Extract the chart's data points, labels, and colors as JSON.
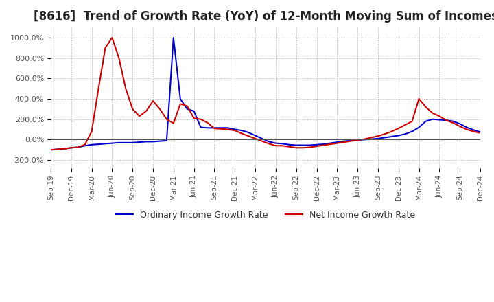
{
  "title": "[8616]  Trend of Growth Rate (YoY) of 12-Month Moving Sum of Incomes",
  "title_fontsize": 12,
  "ylim": [
    -280,
    1100
  ],
  "yticks": [
    -200,
    0,
    200,
    400,
    600,
    800,
    1000
  ],
  "background_color": "#ffffff",
  "grid_color": "#aaaaaa",
  "ordinary_color": "#0000cc",
  "net_color": "#cc0000",
  "legend_labels": [
    "Ordinary Income Growth Rate",
    "Net Income Growth Rate"
  ],
  "ordinary_income": [
    -100,
    -95,
    -90,
    -80,
    -75,
    -60,
    -50,
    -45,
    -40,
    -35,
    -30,
    -30,
    -30,
    -25,
    -20,
    -20,
    -15,
    -10,
    1000,
    400,
    300,
    280,
    120,
    115,
    115,
    115,
    115,
    100,
    90,
    70,
    40,
    10,
    -20,
    -35,
    -40,
    -50,
    -55,
    -55,
    -55,
    -50,
    -45,
    -35,
    -25,
    -15,
    -10,
    -5,
    0,
    5,
    10,
    20,
    30,
    40,
    55,
    80,
    120,
    180,
    200,
    195,
    190,
    180,
    155,
    120,
    95,
    75
  ],
  "net_income": [
    -100,
    -95,
    -90,
    -80,
    -75,
    -50,
    80,
    500,
    900,
    1000,
    800,
    500,
    300,
    230,
    280,
    380,
    300,
    200,
    160,
    350,
    330,
    210,
    200,
    165,
    110,
    105,
    100,
    90,
    60,
    35,
    10,
    -15,
    -40,
    -60,
    -60,
    -70,
    -80,
    -80,
    -75,
    -65,
    -55,
    -45,
    -35,
    -25,
    -15,
    -5,
    5,
    20,
    35,
    55,
    80,
    110,
    145,
    180,
    400,
    320,
    260,
    230,
    190,
    165,
    130,
    100,
    80,
    65
  ],
  "xtick_labels": [
    "Sep-19",
    "Dec-19",
    "Mar-20",
    "Jun-20",
    "Sep-20",
    "Dec-20",
    "Mar-21",
    "Jun-21",
    "Sep-21",
    "Dec-21",
    "Mar-22",
    "Jun-22",
    "Sep-22",
    "Dec-22",
    "Mar-23",
    "Jun-23",
    "Sep-23",
    "Dec-23",
    "Mar-24",
    "Jun-24",
    "Sep-24",
    "Dec-24"
  ],
  "xtick_positions": [
    0,
    3,
    6,
    9,
    12,
    15,
    18,
    21,
    24,
    27,
    30,
    33,
    36,
    39,
    42,
    45,
    48,
    51,
    54,
    57,
    60,
    63
  ]
}
